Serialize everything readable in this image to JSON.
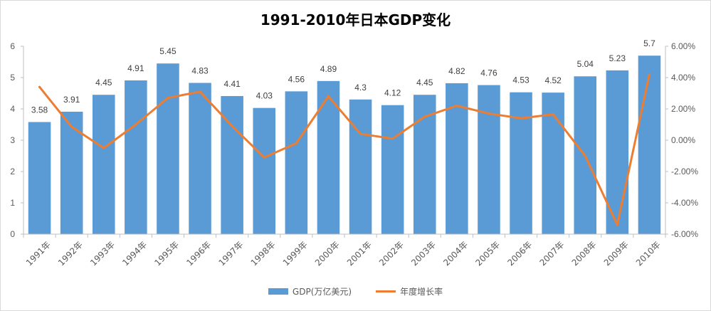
{
  "chart_data": {
    "type": "bar",
    "title": "1991-2010年日本GDP变化",
    "categories": [
      "1991年",
      "1992年",
      "1993年",
      "1994年",
      "1995年",
      "1996年",
      "1997年",
      "1998年",
      "1999年",
      "2000年",
      "2001年",
      "2002年",
      "2003年",
      "2004年",
      "2005年",
      "2006年",
      "2007年",
      "2008年",
      "2009年",
      "2010年"
    ],
    "series": [
      {
        "name": "GDP(万亿美元)",
        "type": "bar",
        "axis": "left",
        "color": "#5B9BD5",
        "values": [
          3.58,
          3.91,
          4.45,
          4.91,
          5.45,
          4.83,
          4.41,
          4.03,
          4.56,
          4.89,
          4.3,
          4.12,
          4.45,
          4.82,
          4.76,
          4.53,
          4.52,
          5.04,
          5.23,
          5.7
        ],
        "data_labels": [
          "3.58",
          "3.91",
          "4.45",
          "4.91",
          "5.45",
          "4.83",
          "4.41",
          "4.03",
          "4.56",
          "4.89",
          "4.3",
          "4.12",
          "4.45",
          "4.82",
          "4.76",
          "4.53",
          "4.52",
          "5.04",
          "5.23",
          "5.7"
        ]
      },
      {
        "name": "年度增长率",
        "type": "line",
        "axis": "right",
        "color": "#ED7D31",
        "values": [
          3.4,
          0.85,
          -0.5,
          1.0,
          2.7,
          3.1,
          0.9,
          -1.1,
          -0.2,
          2.8,
          0.4,
          0.1,
          1.5,
          2.2,
          1.7,
          1.4,
          1.65,
          -1.0,
          -5.4,
          4.2
        ]
      }
    ],
    "ylim": [
      0,
      6
    ],
    "y_ticks": [
      "0",
      "1",
      "2",
      "3",
      "4",
      "5",
      "6"
    ],
    "y2lim": [
      -6,
      6
    ],
    "y2_ticks": [
      "-6.00%",
      "-4.00%",
      "-2.00%",
      "0.00%",
      "2.00%",
      "4.00%",
      "6.00%"
    ],
    "xlabel": "",
    "ylabel": "",
    "grid": false,
    "legend_position": "bottom"
  }
}
